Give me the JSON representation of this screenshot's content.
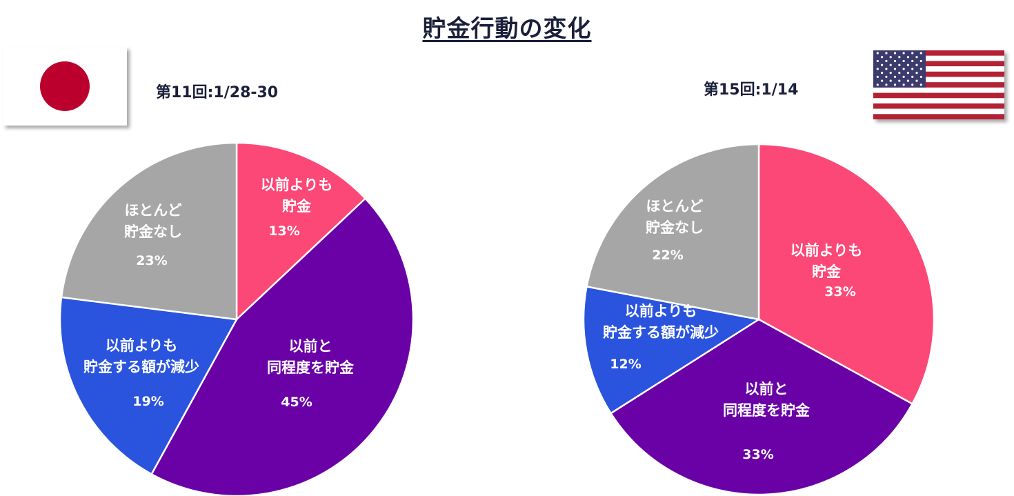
{
  "title": "貯金行動の変化",
  "colors": {
    "more_saving": "#fc4876",
    "same_saving": "#6a01a6",
    "less_saving": "#2a54de",
    "no_saving": "#a6a6a6",
    "jp_circle": "#bc002d",
    "us_red": "#b22234",
    "us_blue": "#3c3b6e"
  },
  "flags": {
    "japan": "japan-flag-icon",
    "usa": "usa-flag-icon"
  },
  "chart_data": [
    {
      "type": "pie",
      "country": "Japan",
      "title": "第11回:1/28-30",
      "slices": [
        {
          "label_lines": [
            "以前よりも",
            "貯金"
          ],
          "value": 13,
          "pct_label": "13%",
          "color": "#fc4876"
        },
        {
          "label_lines": [
            "以前と",
            "同程度を貯金"
          ],
          "value": 45,
          "pct_label": "45%",
          "color": "#6a01a6"
        },
        {
          "label_lines": [
            "以前よりも",
            "貯金する額が減少"
          ],
          "value": 19,
          "pct_label": "19%",
          "color": "#2a54de"
        },
        {
          "label_lines": [
            "ほとんど",
            "貯金なし"
          ],
          "value": 23,
          "pct_label": "23%",
          "color": "#a6a6a6"
        }
      ]
    },
    {
      "type": "pie",
      "country": "USA",
      "title": "第15回:1/14",
      "slices": [
        {
          "label_lines": [
            "以前よりも",
            "貯金"
          ],
          "value": 33,
          "pct_label": "33%",
          "color": "#fc4876"
        },
        {
          "label_lines": [
            "以前と",
            "同程度を貯金"
          ],
          "value": 33,
          "pct_label": "33%",
          "color": "#6a01a6"
        },
        {
          "label_lines": [
            "以前よりも",
            "貯金する額が減少"
          ],
          "value": 12,
          "pct_label": "12%",
          "color": "#2a54de"
        },
        {
          "label_lines": [
            "ほとんど",
            "貯金なし"
          ],
          "value": 22,
          "pct_label": "22%",
          "color": "#a6a6a6"
        }
      ]
    }
  ]
}
